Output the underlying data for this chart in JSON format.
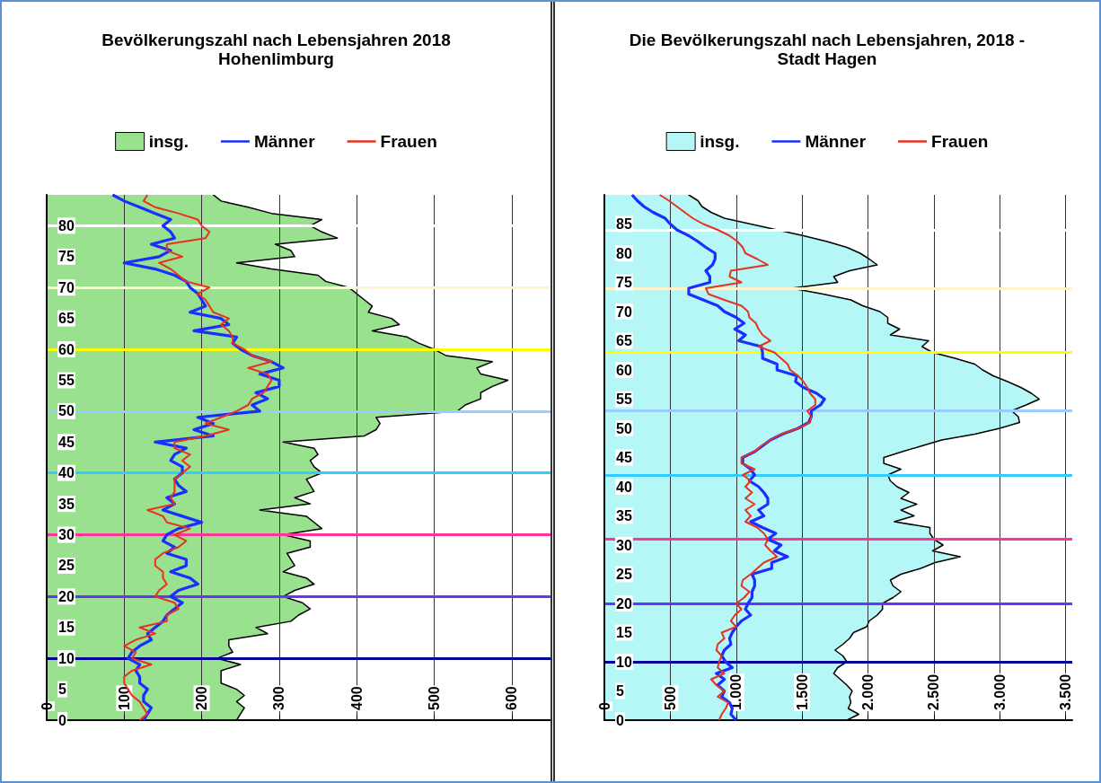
{
  "chart_data": [
    {
      "type": "line",
      "orientation": "horizontal",
      "title": "Bevölkerungszahl nach Lebensjahren 2018",
      "subtitle": "Hohenlimburg",
      "xlim": [
        0,
        650
      ],
      "xticks": [
        0,
        100,
        200,
        300,
        400,
        500,
        600
      ],
      "ylim": [
        0,
        85
      ],
      "yticks": [
        0,
        5,
        10,
        15,
        20,
        25,
        30,
        35,
        40,
        45,
        50,
        55,
        60,
        65,
        70,
        75,
        80
      ],
      "grid": "x",
      "legend": "top",
      "marker": "none",
      "ref_lines": [
        {
          "axis": "y",
          "value": 10,
          "color": "#000099"
        },
        {
          "axis": "y",
          "value": 20,
          "color": "#6633ff"
        },
        {
          "axis": "y",
          "value": 30,
          "color": "#ff3399"
        },
        {
          "axis": "y",
          "value": 40,
          "color": "#33ccff"
        },
        {
          "axis": "y",
          "value": 50,
          "color": "#99ccff"
        },
        {
          "axis": "y",
          "value": 60,
          "color": "#ffff00"
        },
        {
          "axis": "y",
          "value": 70,
          "color": "#fff5cc"
        },
        {
          "axis": "y",
          "value": 80,
          "color": "#ffffff"
        }
      ],
      "series": [
        {
          "name": "insg.",
          "type": "area",
          "color": "#99e08f",
          "values": [
            245,
            250,
            255,
            245,
            255,
            245,
            225,
            225,
            225,
            250,
            220,
            240,
            235,
            235,
            285,
            270,
            315,
            325,
            340,
            330,
            305,
            320,
            345,
            335,
            305,
            320,
            315,
            310,
            340,
            340,
            305,
            355,
            345,
            335,
            275,
            340,
            320,
            345,
            340,
            335,
            355,
            345,
            340,
            350,
            345,
            305,
            410,
            425,
            430,
            425,
            530,
            540,
            560,
            560,
            575,
            595,
            560,
            555,
            575,
            515,
            500,
            480,
            465,
            420,
            455,
            445,
            415,
            420,
            410,
            400,
            390,
            360,
            350,
            290,
            245,
            320,
            315,
            295,
            375,
            355,
            340,
            355,
            290,
            260,
            225,
            215
          ],
          "x": [
            0,
            1,
            2,
            3,
            4,
            5,
            6,
            7,
            8,
            9,
            10,
            11,
            12,
            13,
            14,
            15,
            16,
            17,
            18,
            19,
            20,
            21,
            22,
            23,
            24,
            25,
            26,
            27,
            28,
            29,
            30,
            31,
            32,
            33,
            34,
            35,
            36,
            37,
            38,
            39,
            40,
            41,
            42,
            43,
            44,
            45,
            46,
            47,
            48,
            49,
            50,
            51,
            52,
            53,
            54,
            55,
            56,
            57,
            58,
            59,
            60,
            61,
            62,
            63,
            64,
            65,
            66,
            67,
            68,
            69,
            70,
            71,
            72,
            73,
            74,
            75,
            76,
            77,
            78,
            79,
            80,
            81,
            82,
            83,
            84,
            85
          ]
        },
        {
          "name": "Männer",
          "type": "line",
          "color": "#1a2eff",
          "values": [
            125,
            130,
            135,
            125,
            125,
            130,
            120,
            120,
            115,
            120,
            105,
            110,
            120,
            135,
            130,
            140,
            150,
            155,
            165,
            175,
            160,
            170,
            195,
            185,
            160,
            180,
            180,
            155,
            165,
            150,
            155,
            170,
            200,
            175,
            150,
            165,
            155,
            180,
            170,
            165,
            175,
            175,
            160,
            165,
            180,
            140,
            215,
            190,
            215,
            195,
            275,
            265,
            285,
            270,
            300,
            300,
            275,
            305,
            290,
            265,
            250,
            240,
            245,
            190,
            235,
            225,
            185,
            205,
            200,
            195,
            185,
            180,
            165,
            140,
            100,
            145,
            160,
            135,
            165,
            160,
            150,
            160,
            140,
            120,
            100,
            85
          ],
          "x": [
            0,
            1,
            2,
            3,
            4,
            5,
            6,
            7,
            8,
            9,
            10,
            11,
            12,
            13,
            14,
            15,
            16,
            17,
            18,
            19,
            20,
            21,
            22,
            23,
            24,
            25,
            26,
            27,
            28,
            29,
            30,
            31,
            32,
            33,
            34,
            35,
            36,
            37,
            38,
            39,
            40,
            41,
            42,
            43,
            44,
            45,
            46,
            47,
            48,
            49,
            50,
            51,
            52,
            53,
            54,
            55,
            56,
            57,
            58,
            59,
            60,
            61,
            62,
            63,
            64,
            65,
            66,
            67,
            68,
            69,
            70,
            71,
            72,
            73,
            74,
            75,
            76,
            77,
            78,
            79,
            80,
            81,
            82,
            83,
            84,
            85
          ]
        },
        {
          "name": "Frauen",
          "type": "line",
          "color": "#e8321e",
          "values": [
            120,
            130,
            125,
            120,
            110,
            105,
            100,
            100,
            110,
            135,
            110,
            115,
            100,
            115,
            140,
            120,
            155,
            155,
            170,
            165,
            140,
            145,
            155,
            150,
            150,
            140,
            140,
            150,
            170,
            180,
            165,
            185,
            155,
            150,
            130,
            165,
            160,
            165,
            165,
            165,
            175,
            185,
            175,
            185,
            165,
            165,
            205,
            235,
            205,
            225,
            245,
            260,
            265,
            280,
            285,
            290,
            285,
            260,
            290,
            265,
            255,
            240,
            240,
            235,
            225,
            235,
            215,
            210,
            205,
            195,
            210,
            180,
            170,
            160,
            145,
            175,
            155,
            155,
            205,
            210,
            200,
            195,
            170,
            140,
            125,
            130
          ],
          "x": [
            0,
            1,
            2,
            3,
            4,
            5,
            6,
            7,
            8,
            9,
            10,
            11,
            12,
            13,
            14,
            15,
            16,
            17,
            18,
            19,
            20,
            21,
            22,
            23,
            24,
            25,
            26,
            27,
            28,
            29,
            30,
            31,
            32,
            33,
            34,
            35,
            36,
            37,
            38,
            39,
            40,
            41,
            42,
            43,
            44,
            45,
            46,
            47,
            48,
            49,
            50,
            51,
            52,
            53,
            54,
            55,
            56,
            57,
            58,
            59,
            60,
            61,
            62,
            63,
            64,
            65,
            66,
            67,
            68,
            69,
            70,
            71,
            72,
            73,
            74,
            75,
            76,
            77,
            78,
            79,
            80,
            81,
            82,
            83,
            84,
            85
          ]
        }
      ]
    },
    {
      "type": "line",
      "orientation": "horizontal",
      "title": "Die Bevölkerungszahl nach Lebensjahren, 2018 -",
      "subtitle": "Stadt Hagen",
      "xlim": [
        0,
        3550
      ],
      "xticks": [
        0,
        500,
        {
          "value": 1000,
          "label": "1.000"
        },
        {
          "value": 1500,
          "label": "1.500"
        },
        {
          "value": 2000,
          "label": "2.000"
        },
        {
          "value": 2500,
          "label": "2.500"
        },
        {
          "value": 3000,
          "label": "3.000"
        },
        {
          "value": 3500,
          "label": "3.500"
        }
      ],
      "ylim": [
        0,
        90
      ],
      "yticks": [
        0,
        5,
        10,
        15,
        20,
        25,
        30,
        35,
        40,
        45,
        50,
        55,
        60,
        65,
        70,
        75,
        80,
        85
      ],
      "grid": "x",
      "legend": "top",
      "marker": "none",
      "ref_lines": [
        {
          "axis": "y",
          "value": 10,
          "color": "#000099"
        },
        {
          "axis": "y",
          "value": 20,
          "color": "#6633ff"
        },
        {
          "axis": "y",
          "value": 31,
          "color": "#ff3399"
        },
        {
          "axis": "y",
          "value": 42,
          "color": "#33ccff"
        },
        {
          "axis": "y",
          "value": 53,
          "color": "#99ccff"
        },
        {
          "axis": "y",
          "value": 63,
          "color": "#ffff00"
        },
        {
          "axis": "y",
          "value": 74,
          "color": "#fff5cc"
        },
        {
          "axis": "y",
          "value": 84,
          "color": "#ffffff"
        }
      ],
      "series": [
        {
          "name": "insg.",
          "type": "area",
          "color": "#b5f6f6",
          "values": [
            1840,
            1930,
            1850,
            1870,
            1860,
            1880,
            1840,
            1790,
            1740,
            1770,
            1840,
            1810,
            1750,
            1810,
            1860,
            1890,
            1990,
            2010,
            2070,
            2110,
            2110,
            2190,
            2250,
            2190,
            2170,
            2250,
            2400,
            2510,
            2700,
            2490,
            2570,
            2500,
            2470,
            2470,
            2200,
            2350,
            2250,
            2370,
            2250,
            2310,
            2220,
            2170,
            2150,
            2250,
            2120,
            2120,
            2260,
            2410,
            2560,
            2810,
            3000,
            3150,
            3140,
            3090,
            3200,
            3300,
            3240,
            3160,
            3060,
            2950,
            2870,
            2810,
            2660,
            2490,
            2410,
            2460,
            2170,
            2240,
            2150,
            2150,
            2090,
            1960,
            1870,
            1660,
            1420,
            1770,
            1740,
            1860,
            2070,
            2010,
            1940,
            1840,
            1690,
            1510,
            1310,
            1110,
            910,
            810,
            740,
            710,
            640
          ],
          "x": [
            0,
            1,
            2,
            3,
            4,
            5,
            6,
            7,
            8,
            9,
            10,
            11,
            12,
            13,
            14,
            15,
            16,
            17,
            18,
            19,
            20,
            21,
            22,
            23,
            24,
            25,
            26,
            27,
            28,
            29,
            30,
            31,
            32,
            33,
            34,
            35,
            36,
            37,
            38,
            39,
            40,
            41,
            42,
            43,
            44,
            45,
            46,
            47,
            48,
            49,
            50,
            51,
            52,
            53,
            54,
            55,
            56,
            57,
            58,
            59,
            60,
            61,
            62,
            63,
            64,
            65,
            66,
            67,
            68,
            69,
            70,
            71,
            72,
            73,
            74,
            75,
            76,
            77,
            78,
            79,
            80,
            81,
            82,
            83,
            84,
            85,
            86,
            87,
            88,
            89,
            90
          ]
        },
        {
          "name": "Männer",
          "type": "line",
          "color": "#1a2eff",
          "values": [
            1000,
            960,
            970,
            950,
            890,
            910,
            860,
            910,
            850,
            970,
            920,
            890,
            910,
            960,
            950,
            970,
            1000,
            1040,
            1110,
            1070,
            1090,
            1120,
            1120,
            1140,
            1140,
            1120,
            1270,
            1270,
            1390,
            1290,
            1340,
            1240,
            1300,
            1200,
            1110,
            1210,
            1170,
            1240,
            1240,
            1210,
            1170,
            1100,
            1140,
            1110,
            1050,
            1050,
            1140,
            1200,
            1260,
            1350,
            1470,
            1550,
            1570,
            1570,
            1640,
            1670,
            1610,
            1510,
            1450,
            1460,
            1310,
            1310,
            1200,
            1200,
            1190,
            1020,
            1070,
            990,
            1060,
            1000,
            910,
            860,
            750,
            640,
            640,
            800,
            800,
            770,
            820,
            840,
            840,
            770,
            710,
            640,
            550,
            500,
            460,
            370,
            300,
            250,
            210
          ],
          "x": [
            0,
            1,
            2,
            3,
            4,
            5,
            6,
            7,
            8,
            9,
            10,
            11,
            12,
            13,
            14,
            15,
            16,
            17,
            18,
            19,
            20,
            21,
            22,
            23,
            24,
            25,
            26,
            27,
            28,
            29,
            30,
            31,
            32,
            33,
            34,
            35,
            36,
            37,
            38,
            39,
            40,
            41,
            42,
            43,
            44,
            45,
            46,
            47,
            48,
            49,
            50,
            51,
            52,
            53,
            54,
            55,
            56,
            57,
            58,
            59,
            60,
            61,
            62,
            63,
            64,
            65,
            66,
            67,
            68,
            69,
            70,
            71,
            72,
            73,
            74,
            75,
            76,
            77,
            78,
            79,
            80,
            81,
            82,
            83,
            84,
            85,
            86,
            87,
            88,
            89,
            90
          ]
        },
        {
          "name": "Frauen",
          "type": "line",
          "color": "#e8321e",
          "values": [
            870,
            890,
            920,
            940,
            860,
            910,
            850,
            810,
            910,
            860,
            870,
            890,
            850,
            860,
            910,
            890,
            1000,
            960,
            990,
            1040,
            1000,
            1060,
            1100,
            1040,
            1050,
            1110,
            1160,
            1210,
            1310,
            1260,
            1220,
            1240,
            1210,
            1160,
            1070,
            1110,
            1070,
            1140,
            1070,
            1120,
            1070,
            1110,
            1050,
            1140,
            1040,
            1040,
            1140,
            1190,
            1260,
            1340,
            1470,
            1560,
            1570,
            1540,
            1600,
            1600,
            1560,
            1540,
            1510,
            1470,
            1410,
            1390,
            1340,
            1290,
            1170,
            1260,
            1200,
            1170,
            1150,
            1100,
            1090,
            1040,
            910,
            790,
            770,
            1040,
            950,
            960,
            1240,
            1160,
            1070,
            1050,
            1010,
            950,
            860,
            750,
            670,
            610,
            550,
            490,
            420
          ],
          "x": [
            0,
            1,
            2,
            3,
            4,
            5,
            6,
            7,
            8,
            9,
            10,
            11,
            12,
            13,
            14,
            15,
            16,
            17,
            18,
            19,
            20,
            21,
            22,
            23,
            24,
            25,
            26,
            27,
            28,
            29,
            30,
            31,
            32,
            33,
            34,
            35,
            36,
            37,
            38,
            39,
            40,
            41,
            42,
            43,
            44,
            45,
            46,
            47,
            48,
            49,
            50,
            51,
            52,
            53,
            54,
            55,
            56,
            57,
            58,
            59,
            60,
            61,
            62,
            63,
            64,
            65,
            66,
            67,
            68,
            69,
            70,
            71,
            72,
            73,
            74,
            75,
            76,
            77,
            78,
            79,
            80,
            81,
            82,
            83,
            84,
            85,
            86,
            87,
            88,
            89,
            90
          ]
        }
      ]
    }
  ]
}
